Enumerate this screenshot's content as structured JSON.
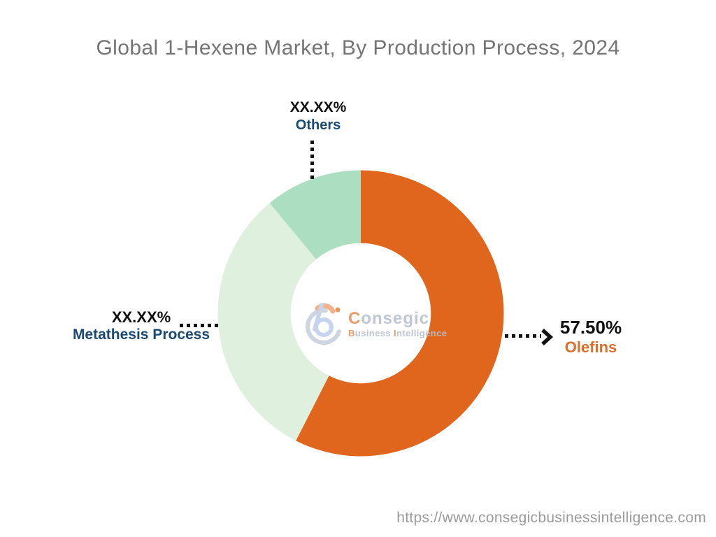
{
  "title": "Global 1-Hexene Market, By Production Process, 2024",
  "footer": {
    "source_url": "https://www.consegicbusinessintelligence.com"
  },
  "logo": {
    "brand_initial": "C",
    "brand_rest": "onsegic",
    "tagline_initial_1": "B",
    "tagline_rest_1": "usiness ",
    "tagline_initial_2": "I",
    "tagline_rest_2": "ntelligence"
  },
  "chart_data": {
    "type": "pie",
    "variant": "donut",
    "title": "Global 1-Hexene Market, By Production Process, 2024",
    "unit": "%",
    "start_angle_deg": 0,
    "direction": "clockwise",
    "inner_radius_ratio": 0.49,
    "legend": "none",
    "connector_color": "#121212",
    "value_label_color": "#101010",
    "segments": [
      {
        "label": "Olefins",
        "display_value": "57.50%",
        "value": 57.5,
        "color": "#E0661E",
        "label_color": "#DE6E2B"
      },
      {
        "label": "Metathesis Process",
        "display_value": "XX.XX%",
        "value": 31.5,
        "color": "#DFF0DF",
        "label_color": "#1A4A72"
      },
      {
        "label": "Others",
        "display_value": "XX.XX%",
        "value": 11.0,
        "color": "#ACDEC2",
        "label_color": "#1A4A72"
      }
    ]
  }
}
